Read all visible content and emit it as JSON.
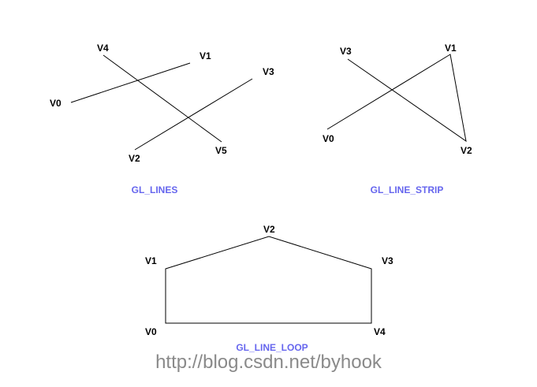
{
  "diagrams": [
    {
      "title": "GL_LINES",
      "vertex_labels": [
        "V0",
        "V1",
        "V2",
        "V3",
        "V4",
        "V5"
      ]
    },
    {
      "title": "GL_LINE_STRIP",
      "vertex_labels": [
        "V0",
        "V1",
        "V2",
        "V3"
      ]
    },
    {
      "title": "GL_LINE_LOOP",
      "vertex_labels": [
        "V0",
        "V1",
        "V2",
        "V3",
        "V4"
      ]
    }
  ],
  "watermark": "http://blog.csdn.net/byhook",
  "colors": {
    "title": "#6666ee",
    "lines": "#000000",
    "watermark": "#8a8a8a"
  }
}
